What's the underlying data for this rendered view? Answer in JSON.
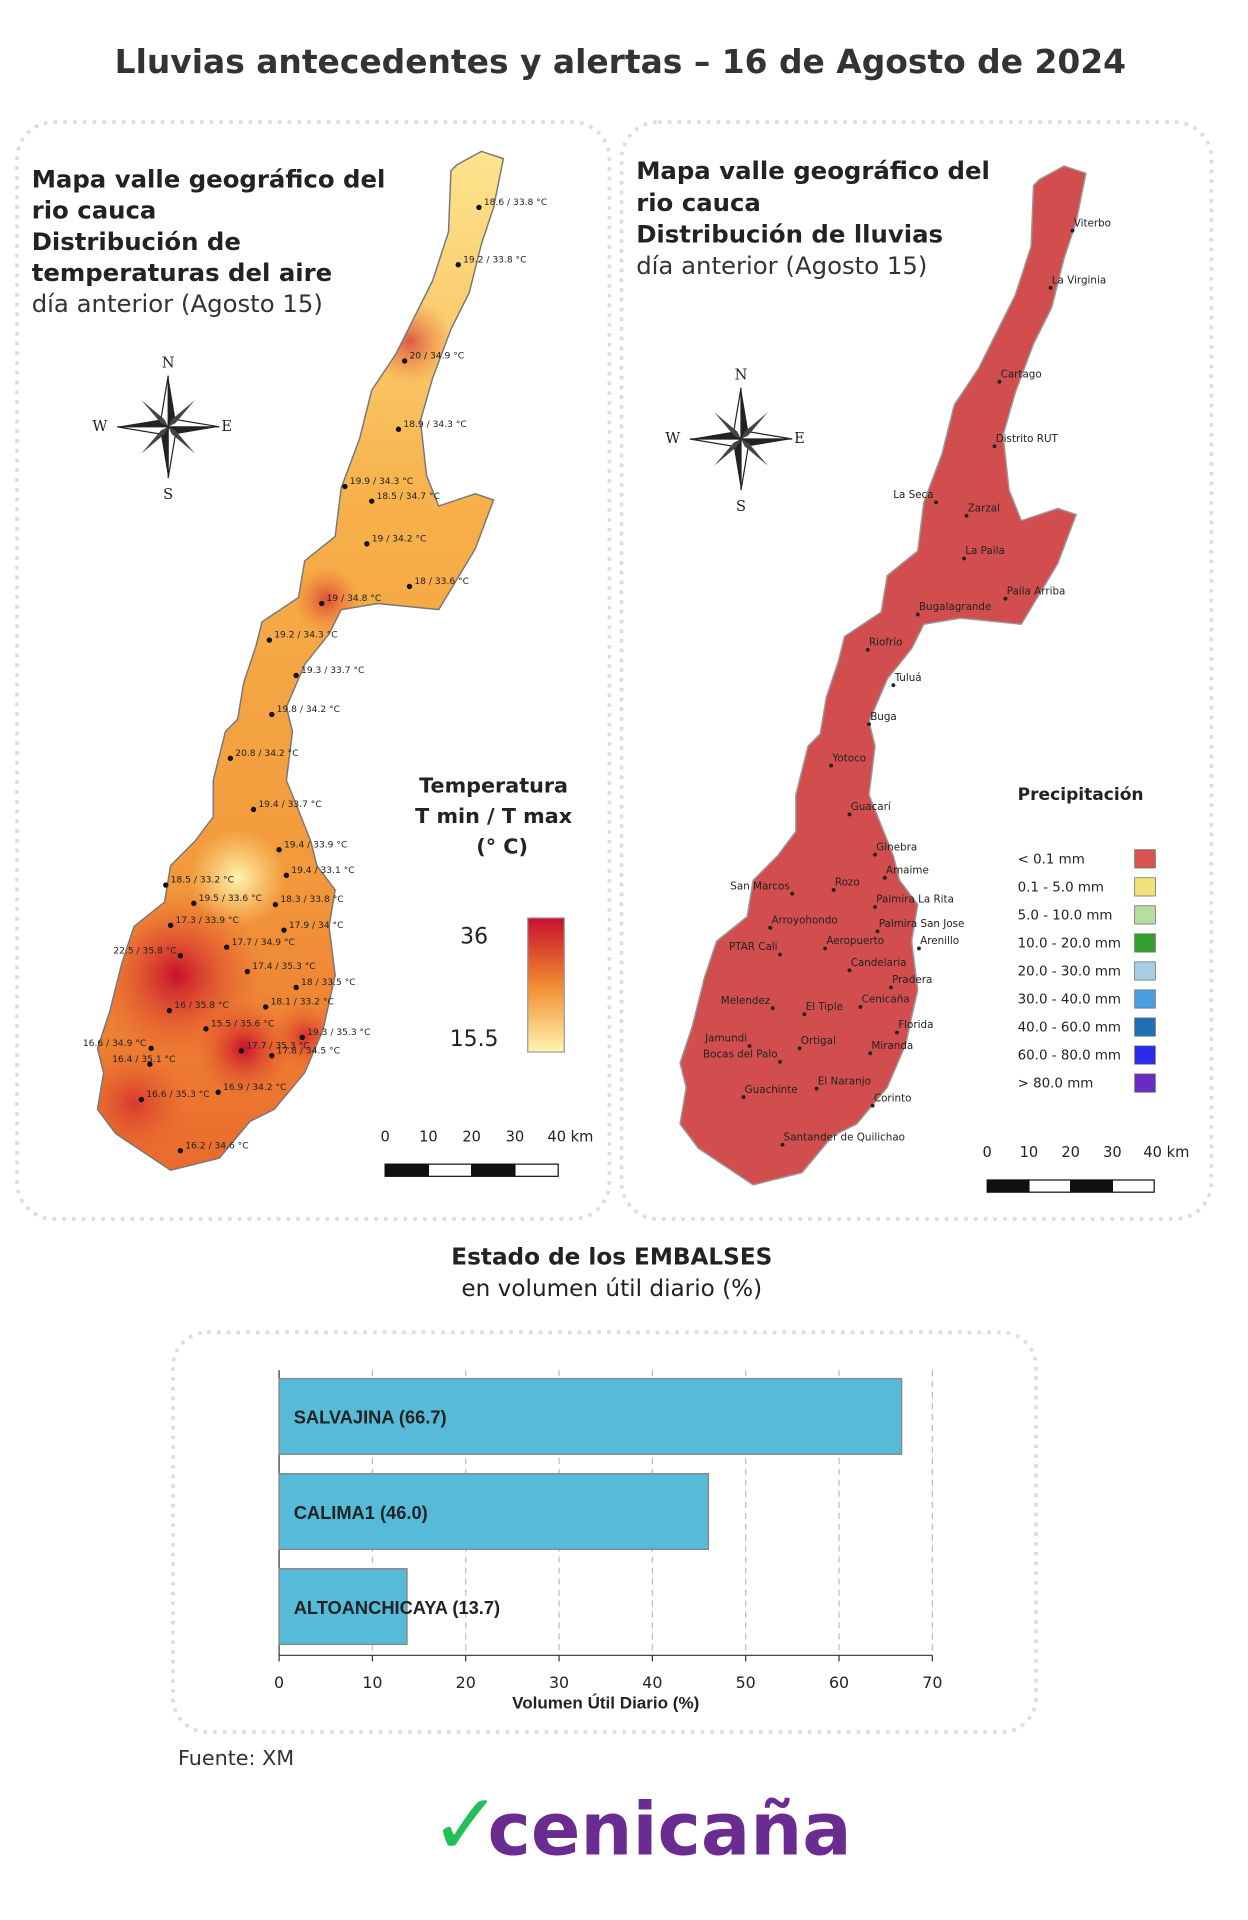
{
  "title": "Lluvias antecedentes y alertas – 16 de Agosto de 2024",
  "temp_map": {
    "heading": [
      "Mapa valle geográfico del",
      "rio cauca",
      "Distribución de",
      "temperaturas del aire"
    ],
    "subheading": "día anterior (Agosto 15)",
    "legend_title": [
      "Temperatura",
      "T min / T max",
      "(° C)"
    ],
    "legend_max": "36",
    "legend_min": "15.5",
    "stations": [
      "18.6 / 33.8 °C",
      "19.2 / 33.8 °C",
      "20 / 34.9 °C",
      "18.9 / 34.3 °C",
      "19.9 / 34.3 °C",
      "18.5 / 34.7 °C",
      "19 / 34.2 °C",
      "18 / 33.6 °C",
      "19 / 34.8 °C",
      "19.2 / 34.3 °C",
      "19.3 / 33.7 °C",
      "19.8 / 34.2 °C",
      "20.8 / 34.2 °C",
      "19.4 / 33.7 °C",
      "19.4 / 33.9 °C",
      "18.5 / 33.2 °C",
      "19.4 / 33.1 °C",
      "19.5 / 33.6 °C",
      "18.3 / 33.8 °C",
      "17.3 / 33.9 °C",
      "17.9 / 34 °C",
      "17.7 / 34.9 °C",
      "22.5 / 35.8 °C",
      "17.4 / 35.3 °C",
      "18 / 33.5 °C",
      "18.1 / 33.2 °C",
      "16 / 35.8 °C",
      "15.5 / 35.6 °C",
      "19.3 / 35.3 °C",
      "16.6 / 34.9 °C",
      "17.7 / 35.3 °C",
      "17.8 / 34.5 °C",
      "16.4 / 35.1 °C",
      "16.6 / 35.3 °C",
      "16.9 / 34.2 °C",
      "16.2 / 34.6 °C"
    ]
  },
  "rain_map": {
    "heading": [
      "Mapa valle geográfico del",
      "rio cauca",
      "Distribución de lluvias"
    ],
    "subheading": "día anterior (Agosto 15)",
    "legend_title": "Precipitación",
    "legend": [
      {
        "label": "< 0.1 mm",
        "color": "#d9534f"
      },
      {
        "label": "0.1 - 5.0 mm",
        "color": "#f0e27a"
      },
      {
        "label": "5.0 - 10.0 mm",
        "color": "#b4dfa0"
      },
      {
        "label": "10.0 - 20.0 mm",
        "color": "#33a02c"
      },
      {
        "label": "20.0 - 30.0 mm",
        "color": "#a6cee3"
      },
      {
        "label": "30.0 - 40.0 mm",
        "color": "#4a9fe0"
      },
      {
        "label": "40.0 - 60.0 mm",
        "color": "#1f6fb4"
      },
      {
        "label": "60.0 - 80.0 mm",
        "color": "#2b2bf0"
      },
      {
        "label": "> 80.0 mm",
        "color": "#6a2bc0"
      }
    ],
    "towns": [
      "Viterbo",
      "La Virginia",
      "Cartago",
      "Distrito RUT",
      "La Seca",
      "Zarzal",
      "La Paila",
      "Paila Arriba",
      "Bugalagrande",
      "Riofrío",
      "Tuluá",
      "Buga",
      "Yotoco",
      "Guacarí",
      "Ginebra",
      "Amaime",
      "San Marcos",
      "Rozo",
      "Palmira La Rita",
      "Arroyohondo",
      "Palmira San Jose",
      "Aeropuerto",
      "Arenillo",
      "PTAR Cali",
      "Candelaria",
      "Pradera",
      "Melendez",
      "Cenicaña",
      "El Tiple",
      "Florida",
      "Jamundi",
      "Ortigal",
      "Bocas del Palo",
      "Miranda",
      "El Naranjo",
      "Guachinte",
      "Corinto",
      "Santander de Quilichao"
    ]
  },
  "compass": [
    "N",
    "W",
    "E",
    "S"
  ],
  "scale_labels": [
    "0",
    "10",
    "20",
    "30",
    "40 km"
  ],
  "chart_data": {
    "type": "bar",
    "orientation": "horizontal",
    "title": "Estado de los EMBALSES",
    "subtitle": "en volumen útil diario (%)",
    "categories": [
      "SALVAJINA (66.7)",
      "CALIMA1 (46.0)",
      "ALTOANCHICAYA (13.7)"
    ],
    "values": [
      66.7,
      46.0,
      13.7
    ],
    "color": "#56bbd9",
    "xlim": [
      0,
      70
    ],
    "xticks": [
      0,
      10,
      20,
      30,
      40,
      50,
      60,
      70
    ],
    "xlabel": "Volumen Útil Diario (%)",
    "grid": true
  },
  "source": "Fuente: XM",
  "logo": "cenicaña"
}
